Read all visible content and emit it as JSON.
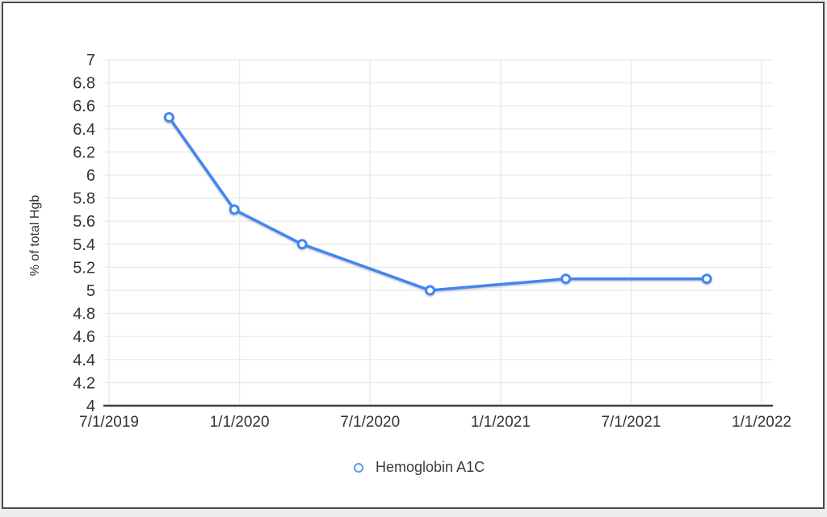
{
  "chart_data": {
    "type": "line",
    "title": "",
    "xlabel": "",
    "ylabel": "% of total Hgb",
    "ylim": [
      4,
      7
    ],
    "ytick_step": 0.2,
    "x_ticks": [
      "7/1/2019",
      "1/1/2020",
      "7/1/2020",
      "1/1/2021",
      "7/1/2021",
      "1/1/2022"
    ],
    "xlim_years": [
      2019.5,
      2022.0
    ],
    "grid": true,
    "legend": {
      "label": "Hemoglobin A1C",
      "position": "bottom"
    },
    "series": [
      {
        "name": "Hemoglobin A1C",
        "points": [
          {
            "approx_date": "9/2019",
            "year": 2019.73,
            "value": 6.5
          },
          {
            "approx_date": "12/2019",
            "year": 2019.98,
            "value": 5.7
          },
          {
            "approx_date": "3/2020",
            "year": 2020.24,
            "value": 5.4
          },
          {
            "approx_date": "9/2020",
            "year": 2020.73,
            "value": 5.0
          },
          {
            "approx_date": "3/2021",
            "year": 2021.25,
            "value": 5.1
          },
          {
            "approx_date": "10/2021",
            "year": 2021.79,
            "value": 5.1
          }
        ]
      }
    ],
    "colors": {
      "line": "#4285f4",
      "marker_fill": "#ffffff",
      "grid": "#ececec",
      "axis": "#3f3f3f",
      "tick_text": "#333333",
      "legend_marker": "#5e97f6"
    }
  }
}
